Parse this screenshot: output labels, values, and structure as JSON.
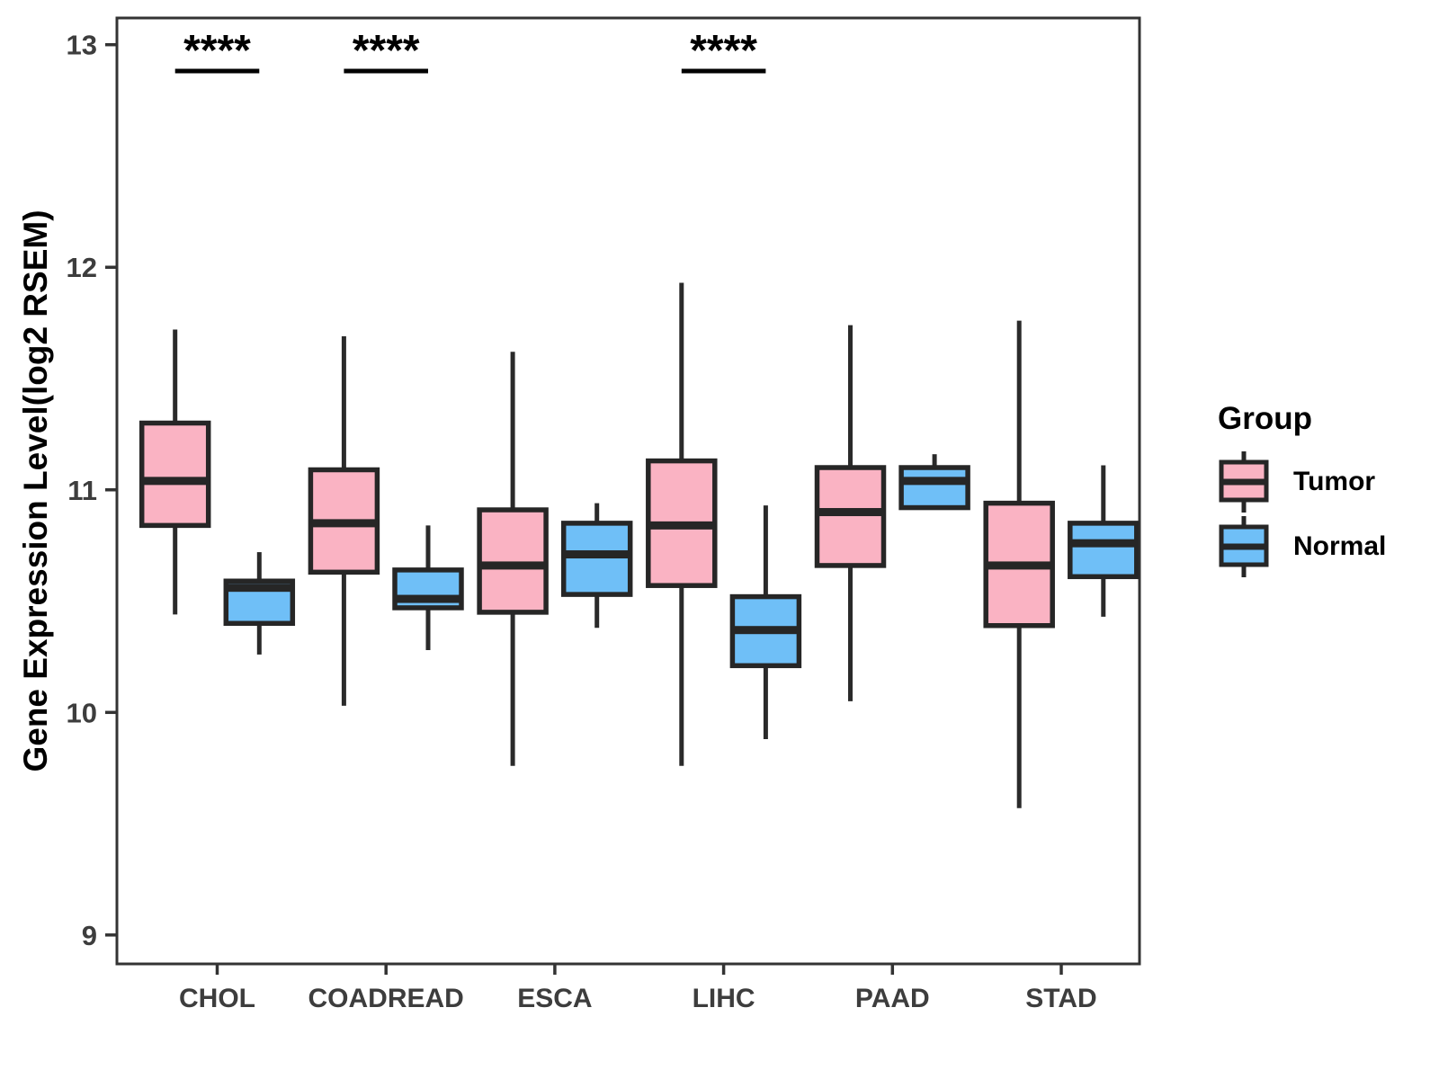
{
  "chart_data": {
    "type": "grouped_boxplot",
    "title": "",
    "xlabel": "",
    "ylabel": "Gene Expression Level(log2 RSEM)",
    "ylim": [
      8.87,
      13.12
    ],
    "yticks": [
      9,
      10,
      11,
      12,
      13
    ],
    "categories": [
      "CHOL",
      "COADREAD",
      "ESCA",
      "LIHC",
      "PAAD",
      "STAD"
    ],
    "legend": {
      "title": "Group",
      "entries": [
        {
          "label": "Tumor",
          "color": "#FAB3C3"
        },
        {
          "label": "Normal",
          "color": "#6FBFF7"
        }
      ]
    },
    "series": [
      {
        "name": "Tumor",
        "color": "#FAB3C3",
        "boxes": [
          {
            "category": "CHOL",
            "min": 10.44,
            "q1": 10.84,
            "median": 11.04,
            "q3": 11.3,
            "max": 11.72
          },
          {
            "category": "COADREAD",
            "min": 10.03,
            "q1": 10.63,
            "median": 10.85,
            "q3": 11.09,
            "max": 11.69
          },
          {
            "category": "ESCA",
            "min": 9.76,
            "q1": 10.45,
            "median": 10.66,
            "q3": 10.91,
            "max": 11.62
          },
          {
            "category": "LIHC",
            "min": 9.76,
            "q1": 10.57,
            "median": 10.84,
            "q3": 11.13,
            "max": 11.93
          },
          {
            "category": "PAAD",
            "min": 10.05,
            "q1": 10.66,
            "median": 10.9,
            "q3": 11.1,
            "max": 11.74
          },
          {
            "category": "STAD",
            "min": 9.57,
            "q1": 10.39,
            "median": 10.66,
            "q3": 10.94,
            "max": 11.76
          }
        ]
      },
      {
        "name": "Normal",
        "color": "#6FBFF7",
        "boxes": [
          {
            "category": "CHOL",
            "min": 10.26,
            "q1": 10.4,
            "median": 10.56,
            "q3": 10.59,
            "max": 10.72
          },
          {
            "category": "COADREAD",
            "min": 10.28,
            "q1": 10.47,
            "median": 10.51,
            "q3": 10.64,
            "max": 10.84
          },
          {
            "category": "ESCA",
            "min": 10.38,
            "q1": 10.53,
            "median": 10.71,
            "q3": 10.85,
            "max": 10.94
          },
          {
            "category": "LIHC",
            "min": 9.88,
            "q1": 10.21,
            "median": 10.37,
            "q3": 10.52,
            "max": 10.93
          },
          {
            "category": "PAAD",
            "min": 10.92,
            "q1": 10.92,
            "median": 11.04,
            "q3": 11.1,
            "max": 11.16
          },
          {
            "category": "STAD",
            "min": 10.43,
            "q1": 10.61,
            "median": 10.76,
            "q3": 10.85,
            "max": 11.11
          }
        ]
      }
    ],
    "significance": [
      {
        "category": "CHOL",
        "label": "****"
      },
      {
        "category": "COADREAD",
        "label": "****"
      },
      {
        "category": "LIHC",
        "label": "****"
      }
    ],
    "colors": {
      "box_border": "#262626",
      "whisker": "#2a2a2a",
      "median": "#262626",
      "axis_text": "#3d3d3d",
      "panel_border": "#333333",
      "annotation_text": "#000000"
    },
    "layout_hints": {
      "grid": false,
      "legend_position": "right"
    }
  }
}
